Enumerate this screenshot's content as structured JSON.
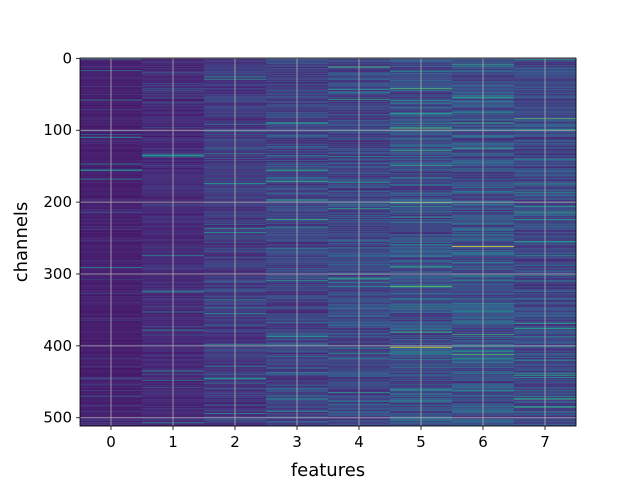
{
  "chart_data": {
    "type": "heatmap",
    "title": "",
    "xlabel": "features",
    "ylabel": "channels",
    "x_categories": [
      "0",
      "1",
      "2",
      "3",
      "4",
      "5",
      "6",
      "7"
    ],
    "y_ticks": [
      0,
      100,
      200,
      300,
      400,
      500
    ],
    "y_tick_labels": [
      "0",
      "100",
      "200",
      "300",
      "400",
      "500"
    ],
    "xlim": [
      -0.5,
      7.5
    ],
    "ylim": [
      511.5,
      -0.5
    ],
    "n_channels": 512,
    "n_features": 8,
    "colormap": "viridis",
    "grid": true,
    "grid_color": "#b0b0b0",
    "column_intensity_profile": [
      0.05,
      0.1,
      0.16,
      0.22,
      0.24,
      0.28,
      0.3,
      0.24
    ],
    "highlights": [
      {
        "feature": 5,
        "channel": 402,
        "intensity": 0.95
      },
      {
        "feature": 6,
        "channel": 262,
        "intensity": 1.0
      },
      {
        "feature": 6,
        "channel": 90,
        "intensity": 0.6
      }
    ]
  }
}
